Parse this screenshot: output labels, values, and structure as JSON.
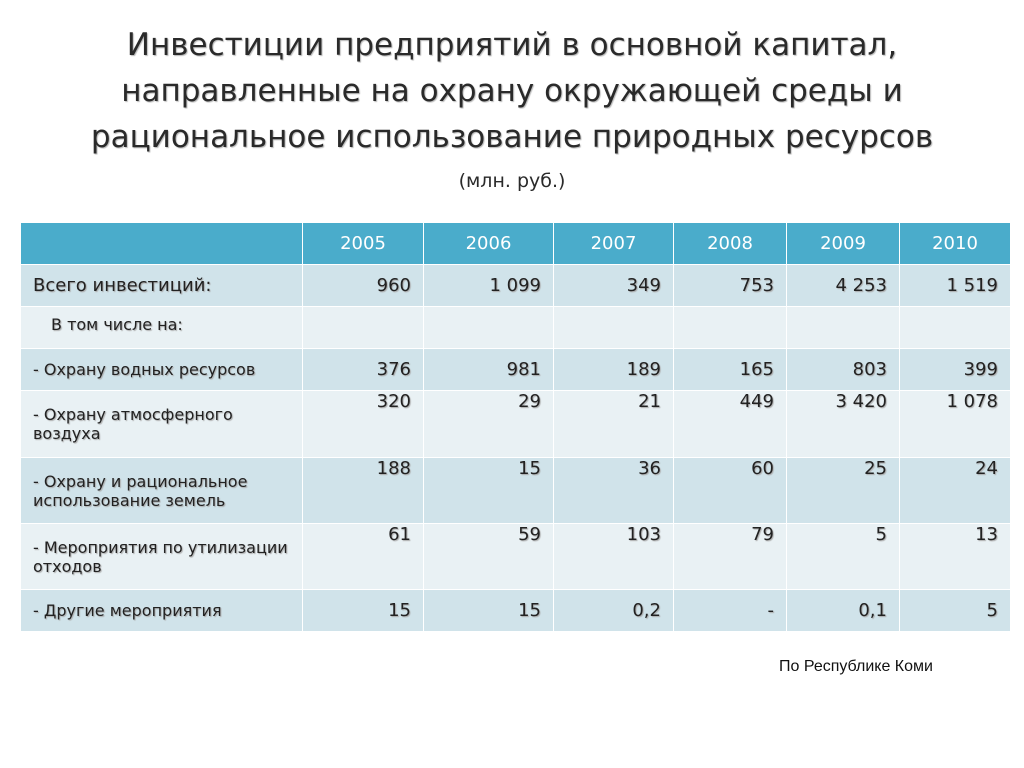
{
  "title": {
    "line1": "Инвестиции предприятий в основной капитал,",
    "line2": "направленные на охрану окружающей среды и",
    "line3": "рациональное использование природных ресурсов"
  },
  "subtitle": "(млн. руб.)",
  "table": {
    "years": [
      "2005",
      "2006",
      "2007",
      "2008",
      "2009",
      "2010"
    ],
    "rows": [
      {
        "label": "Всего инвестиций:",
        "values": [
          "960",
          "1 099",
          "349",
          "753",
          "4 253",
          "1 519"
        ]
      },
      {
        "label": "В том числе на:",
        "values": [
          "",
          "",
          "",
          "",
          "",
          ""
        ]
      },
      {
        "label": "- Охрану водных ресурсов",
        "values": [
          "376",
          "981",
          "189",
          "165",
          "803",
          "399"
        ]
      },
      {
        "label": "- Охрану атмосферного воздуха",
        "values": [
          "320",
          "29",
          "21",
          "449",
          "3 420",
          "1 078"
        ]
      },
      {
        "label": "- Охрану и рациональное использование земель",
        "values": [
          "188",
          "15",
          "36",
          "60",
          "25",
          "24"
        ]
      },
      {
        "label": "- Мероприятия по утилизации отходов",
        "values": [
          "61",
          "59",
          "103",
          "79",
          "5",
          "13"
        ]
      },
      {
        "label": "- Другие мероприятия",
        "values": [
          "15",
          "15",
          "0,2",
          "-",
          "0,1",
          "5"
        ]
      }
    ]
  },
  "footnote": "По Республике Коми"
}
